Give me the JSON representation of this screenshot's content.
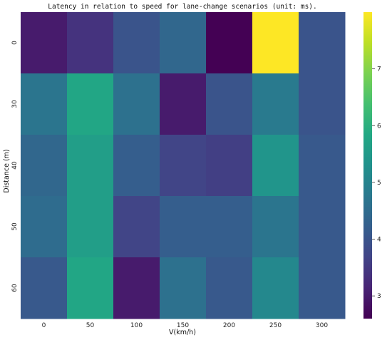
{
  "chart_data": {
    "type": "heatmap",
    "title": "Latency in relation to speed for lane-change scenarios (unit: ms).",
    "xlabel": "V(km/h)",
    "ylabel": "Distance (m)",
    "x_categories": [
      "0",
      "50",
      "100",
      "150",
      "200",
      "250",
      "300"
    ],
    "y_categories": [
      "0",
      "30",
      "40",
      "50",
      "60"
    ],
    "values": [
      [
        3.0,
        3.4,
        4.0,
        4.4,
        2.6,
        8.0,
        4.0
      ],
      [
        4.7,
        5.8,
        4.6,
        3.0,
        4.0,
        4.8,
        4.0
      ],
      [
        4.4,
        5.6,
        4.2,
        3.7,
        3.6,
        5.4,
        4.1
      ],
      [
        4.5,
        5.6,
        3.7,
        4.2,
        4.2,
        4.7,
        4.1
      ],
      [
        4.1,
        5.8,
        3.0,
        4.6,
        4.1,
        5.1,
        4.1
      ]
    ],
    "colorbar": {
      "min": 2.6,
      "max": 8.0,
      "ticks": [
        "3",
        "4",
        "5",
        "6",
        "7"
      ]
    },
    "colormap": "viridis",
    "grid": false
  }
}
